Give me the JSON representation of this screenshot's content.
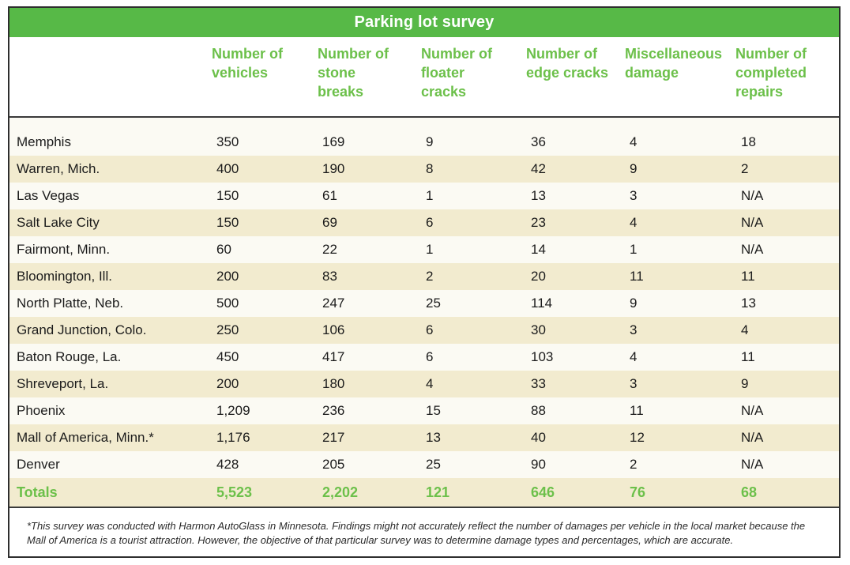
{
  "title": "Parking lot survey",
  "columns": [
    "Number of vehicles",
    "Number of stone breaks",
    "Number of floater cracks",
    "Number of edge cracks",
    "Miscellaneous damage",
    "Number of completed repairs"
  ],
  "rows": [
    {
      "city": "Memphis",
      "values": [
        "350",
        "169",
        "9",
        "36",
        "4",
        "18"
      ]
    },
    {
      "city": "Warren, Mich.",
      "values": [
        "400",
        "190",
        "8",
        "42",
        "9",
        "2"
      ]
    },
    {
      "city": "Las Vegas",
      "values": [
        "150",
        "61",
        "1",
        "13",
        "3",
        "N/A"
      ]
    },
    {
      "city": "Salt Lake City",
      "values": [
        "150",
        "69",
        "6",
        "23",
        "4",
        "N/A"
      ]
    },
    {
      "city": "Fairmont, Minn.",
      "values": [
        "60",
        "22",
        "1",
        "14",
        "1",
        "N/A"
      ]
    },
    {
      "city": "Bloomington, Ill.",
      "values": [
        "200",
        "83",
        "2",
        "20",
        "11",
        "11"
      ]
    },
    {
      "city": "North Platte, Neb.",
      "values": [
        "500",
        "247",
        "25",
        "114",
        "9",
        "13"
      ]
    },
    {
      "city": "Grand Junction, Colo.",
      "values": [
        "250",
        "106",
        "6",
        "30",
        "3",
        "4"
      ]
    },
    {
      "city": "Baton Rouge, La.",
      "values": [
        "450",
        "417",
        "6",
        "103",
        "4",
        "11"
      ]
    },
    {
      "city": "Shreveport, La.",
      "values": [
        "200",
        "180",
        "4",
        "33",
        "3",
        "9"
      ]
    },
    {
      "city": "Phoenix",
      "values": [
        "1,209",
        "236",
        "15",
        "88",
        "11",
        "N/A"
      ]
    },
    {
      "city": "Mall of America, Minn.*",
      "values": [
        "1,176",
        "217",
        "13",
        "40",
        "12",
        "N/A"
      ]
    },
    {
      "city": "Denver",
      "values": [
        "428",
        "205",
        "25",
        "90",
        "2",
        "N/A"
      ]
    }
  ],
  "totals": {
    "label": "Totals",
    "values": [
      "5,523",
      "2,202",
      "121",
      "646",
      "76",
      "68"
    ]
  },
  "footnote": "*This survey was conducted with Harmon AutoGlass in Minnesota. Findings might not accurately reflect the number of damages per vehicle in the local market because the Mall of America is a tourist attraction. However, the objective of that particular survey was to determine damage types and percentages, which are accurate.",
  "colors": {
    "accent_green": "#57b947",
    "header_text_green": "#6cc04a",
    "stripe": "#f2ebcf"
  }
}
